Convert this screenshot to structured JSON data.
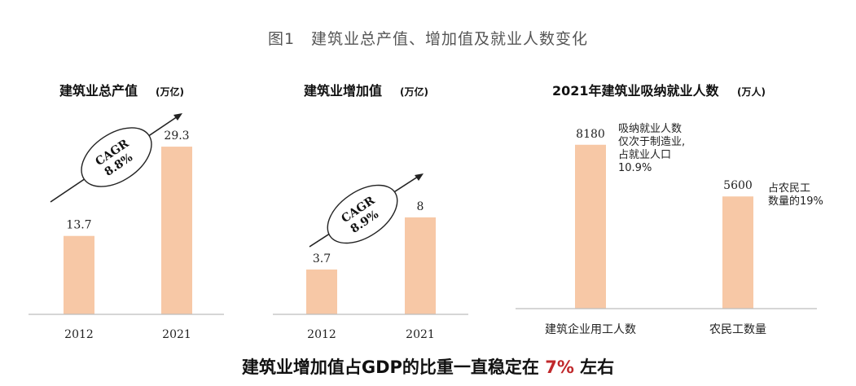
{
  "figure_title": "图1　建筑业总产值、增加值及就业人数变化",
  "footer": {
    "before": "建筑业增加值占GDP的比重一直稳定在 ",
    "highlight": "7%",
    "after": " 左右"
  },
  "colors": {
    "bar": "#f7c8a6",
    "axis": "#bdbdbd",
    "highlight": "#c0282b"
  },
  "chart_data": [
    {
      "type": "bar",
      "title": "建筑业总产值",
      "unit": "(万亿)",
      "categories": [
        "2012",
        "2021"
      ],
      "values": [
        13.7,
        29.3
      ],
      "value_labels": [
        "13.7",
        "29.3"
      ],
      "annotation": {
        "line1": "CAGR",
        "line2": "8.8%"
      },
      "ylim": [
        0,
        36
      ]
    },
    {
      "type": "bar",
      "title": "建筑业增加值",
      "unit": "(万亿)",
      "categories": [
        "2012",
        "2021"
      ],
      "values": [
        3.7,
        8
      ],
      "value_labels": [
        "3.7",
        "8"
      ],
      "annotation": {
        "line1": "CAGR",
        "line2": "8.9%"
      },
      "ylim": [
        0,
        17
      ]
    },
    {
      "type": "bar",
      "title": "2021年建筑业吸纳就业人数",
      "unit": "(万人)",
      "categories": [
        "建筑企业用工人数",
        "农民工数量"
      ],
      "values": [
        8180,
        5600
      ],
      "value_labels": [
        "8180",
        "5600"
      ],
      "notes": [
        [
          "吸纳就业人数",
          "仅次于制造业,",
          "占就业人口",
          "10.9%"
        ],
        [
          "占农民工",
          "数量的19%"
        ]
      ],
      "ylim": [
        0,
        10000
      ]
    }
  ]
}
